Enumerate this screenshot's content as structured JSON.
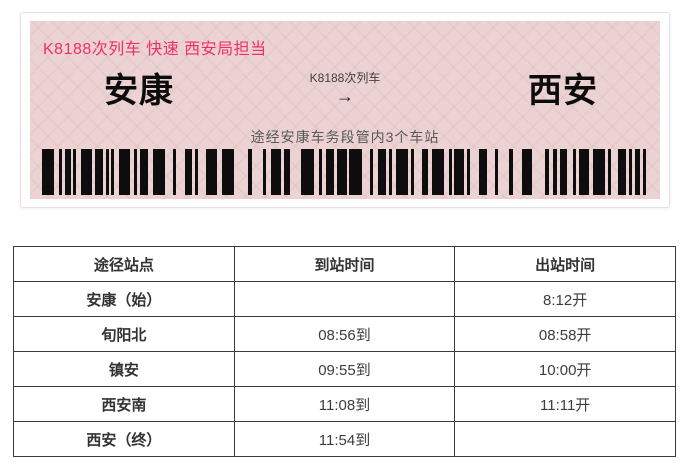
{
  "ticket": {
    "header_line": "K8188次列车 快速 西安局担当",
    "from_station": "安康",
    "to_station": "西安",
    "train_label": "K8188次列车",
    "arrow": "→",
    "note": "途经安康车务段管内3个车站",
    "colors": {
      "accent_pink": "#ef2f69",
      "panel_bg": "#ecd2d2",
      "barcode_color": "#0d0d0d"
    },
    "barcode_pattern": [
      12,
      5,
      3,
      3,
      6,
      2,
      3,
      5,
      11,
      3,
      8,
      3,
      3,
      2,
      3,
      5,
      11,
      4,
      3,
      3,
      8,
      5,
      12,
      8,
      3,
      9,
      7,
      3,
      3,
      8,
      11,
      5,
      12,
      14,
      4,
      11,
      3,
      5,
      10,
      3,
      6,
      11,
      13,
      5,
      3,
      4,
      8,
      3,
      10,
      2,
      13,
      8,
      3,
      5,
      8,
      3,
      3,
      4,
      12,
      3,
      3,
      8,
      6,
      4,
      12,
      5,
      3,
      2,
      10,
      3,
      3,
      9,
      8,
      8,
      3,
      11,
      4,
      9,
      10,
      13,
      4,
      4,
      4,
      3,
      7,
      6,
      3,
      3,
      10,
      4,
      12,
      3,
      3,
      7,
      8,
      3,
      3,
      3,
      5,
      3,
      9,
      10,
      3,
      5,
      12,
      3,
      5,
      12,
      3,
      3,
      9
    ]
  },
  "timetable": {
    "headers": [
      "途径站点",
      "到站时间",
      "出站时间"
    ],
    "rows": [
      {
        "station": "安康（始）",
        "arrive": "",
        "depart": "8:12开"
      },
      {
        "station": "旬阳北",
        "arrive": "08:56到",
        "depart": "08:58开"
      },
      {
        "station": "镇安",
        "arrive": "09:55到",
        "depart": "10:00开"
      },
      {
        "station": "西安南",
        "arrive": "11:08到",
        "depart": "11:11开"
      },
      {
        "station": "西安（终）",
        "arrive": "11:54到",
        "depart": ""
      }
    ]
  }
}
